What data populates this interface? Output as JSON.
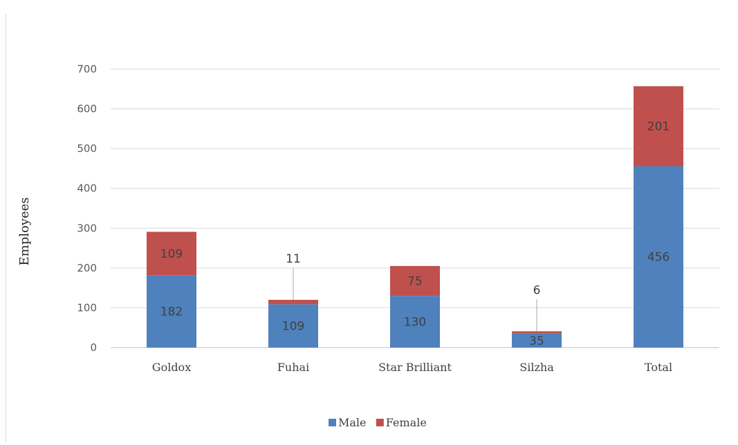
{
  "chart_data": {
    "type": "bar",
    "stacked": true,
    "title": "",
    "xlabel": "",
    "ylabel": "Employees",
    "ylim": [
      0,
      700
    ],
    "yticks": [
      0,
      100,
      200,
      300,
      400,
      500,
      600,
      700
    ],
    "grid": true,
    "legend_position": "bottom",
    "categories": [
      "Goldox",
      "Fuhai",
      "Star Brilliant",
      "Silzha",
      "Total"
    ],
    "series": [
      {
        "name": "Male",
        "color": "#4f81bd",
        "values": [
          182,
          109,
          130,
          35,
          456
        ]
      },
      {
        "name": "Female",
        "color": "#c0504d",
        "values": [
          109,
          11,
          75,
          6,
          201
        ]
      }
    ]
  }
}
